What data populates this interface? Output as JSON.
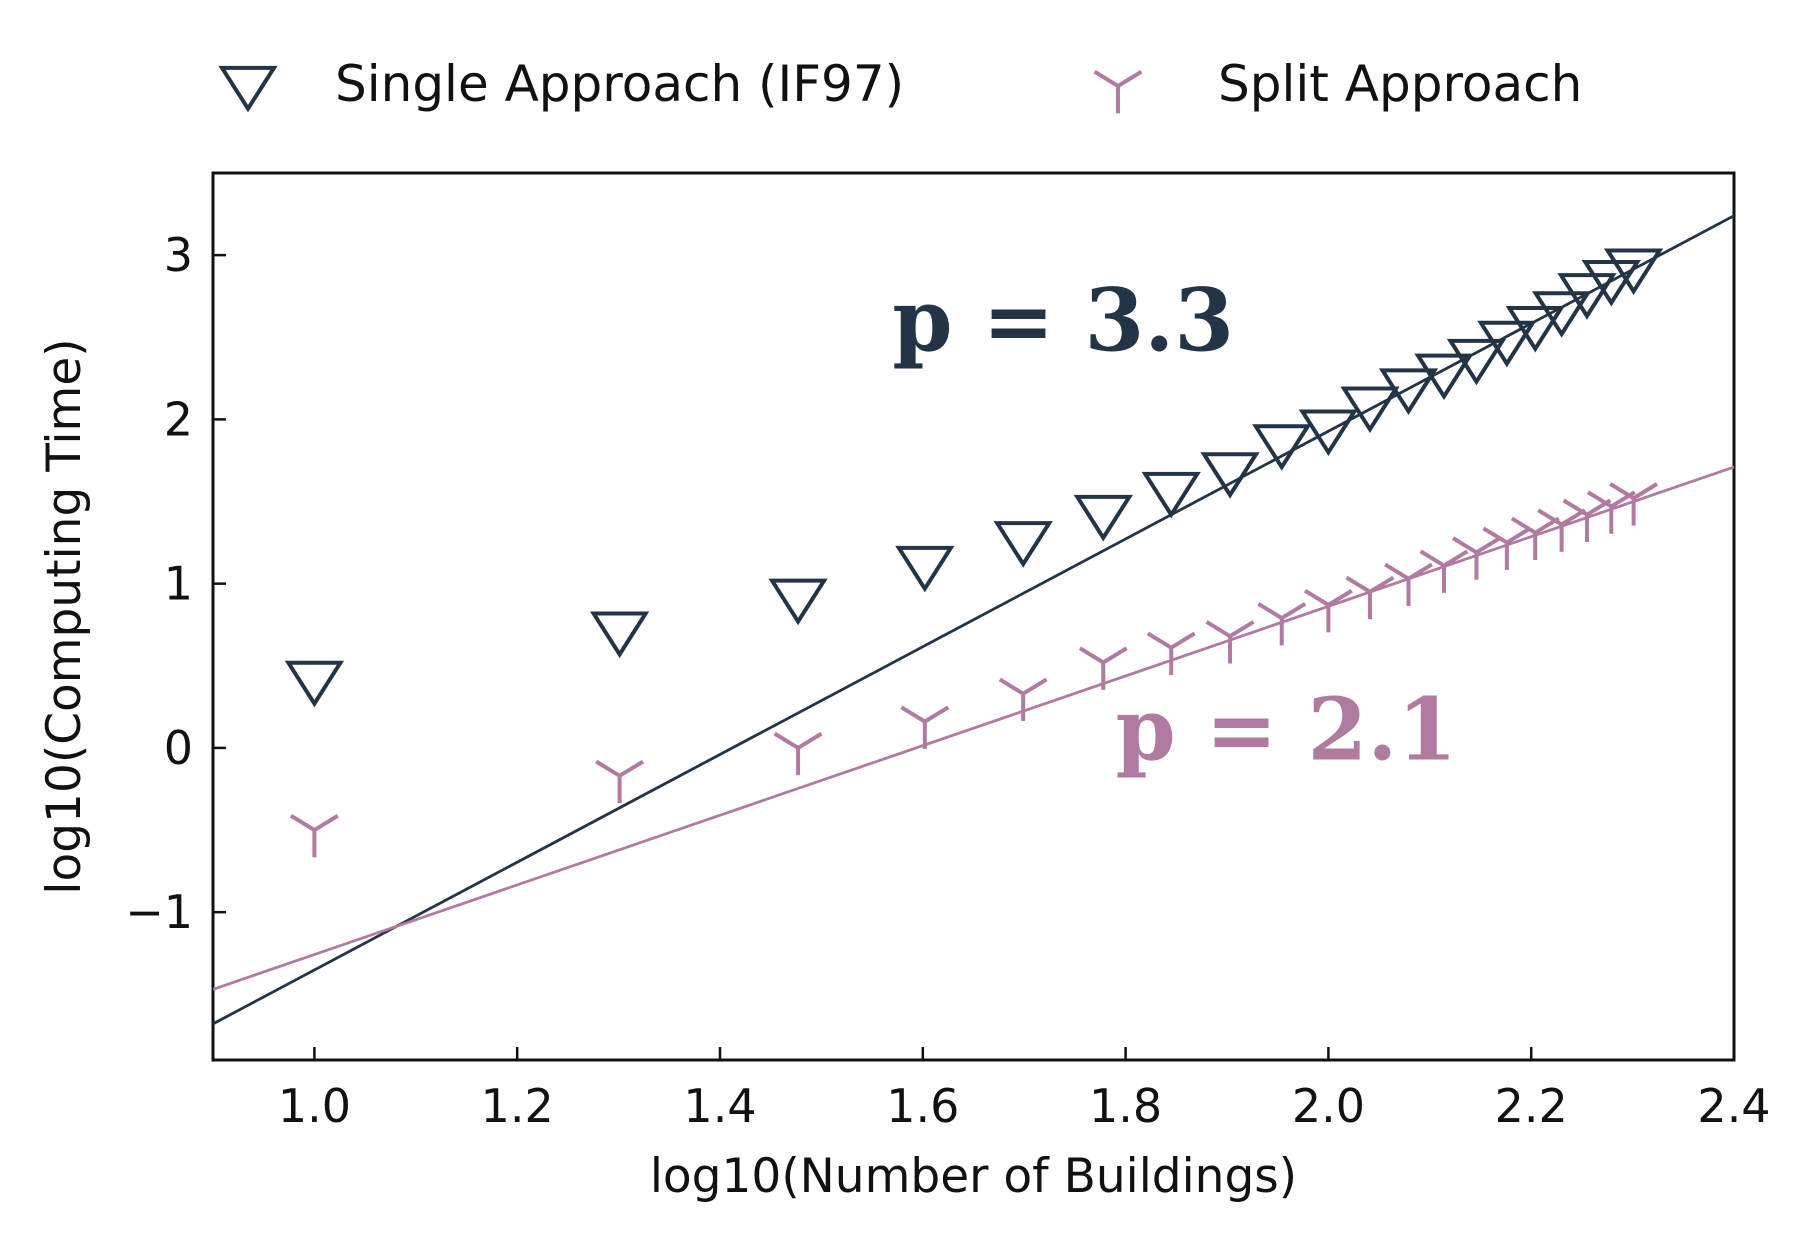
{
  "chart_data": {
    "type": "scatter",
    "xlabel": "log10(Number of Buildings)",
    "ylabel": "log10(Computing Time)",
    "xlim": [
      0.9,
      2.4
    ],
    "ylim": [
      -1.9,
      3.5
    ],
    "xticks": [
      1.0,
      1.2,
      1.4,
      1.6,
      1.8,
      2.0,
      2.2,
      2.4
    ],
    "xtick_labels": [
      "1.0",
      "1.2",
      "1.4",
      "1.6",
      "1.8",
      "2.0",
      "2.2",
      "2.4"
    ],
    "yticks": [
      -1,
      0,
      1,
      2,
      3
    ],
    "ytick_labels": [
      "−1",
      "0",
      "1",
      "2",
      "3"
    ],
    "grid": false,
    "legend_position": "top",
    "series": [
      {
        "name": "Single Approach (IF97)",
        "color": "#243447",
        "marker": "triangle-down-open",
        "x": [
          1.0,
          1.301,
          1.477,
          1.602,
          1.699,
          1.778,
          1.845,
          1.903,
          1.954,
          2.0,
          2.041,
          2.079,
          2.114,
          2.146,
          2.176,
          2.204,
          2.23,
          2.255,
          2.279,
          2.301
        ],
        "y": [
          0.42,
          0.72,
          0.92,
          1.12,
          1.27,
          1.43,
          1.57,
          1.69,
          1.86,
          1.95,
          2.09,
          2.2,
          2.29,
          2.38,
          2.49,
          2.58,
          2.67,
          2.78,
          2.86,
          2.93
        ],
        "fit": {
          "slope": 3.3,
          "x": [
            0.9,
            2.4
          ],
          "y": [
            -1.68,
            3.24
          ]
        }
      },
      {
        "name": "Split Approach",
        "color": "#b07aa1",
        "marker": "tri-down",
        "x": [
          1.0,
          1.301,
          1.477,
          1.602,
          1.699,
          1.778,
          1.845,
          1.903,
          1.954,
          2.0,
          2.041,
          2.079,
          2.114,
          2.146,
          2.176,
          2.204,
          2.23,
          2.255,
          2.279,
          2.301
        ],
        "y": [
          -0.5,
          -0.17,
          0.0,
          0.16,
          0.33,
          0.52,
          0.61,
          0.68,
          0.79,
          0.87,
          0.95,
          1.03,
          1.11,
          1.19,
          1.25,
          1.31,
          1.36,
          1.42,
          1.47,
          1.52
        ],
        "fit": {
          "slope": 2.1,
          "x": [
            0.9,
            2.4
          ],
          "y": [
            -1.47,
            1.71
          ]
        }
      }
    ],
    "annotations": [
      {
        "text": "p = 3.3",
        "x": 1.57,
        "y": 2.42,
        "color": "#243447"
      },
      {
        "text": "p = 2.1",
        "x": 1.79,
        "y": -0.07,
        "color": "#b07aa1"
      }
    ]
  }
}
